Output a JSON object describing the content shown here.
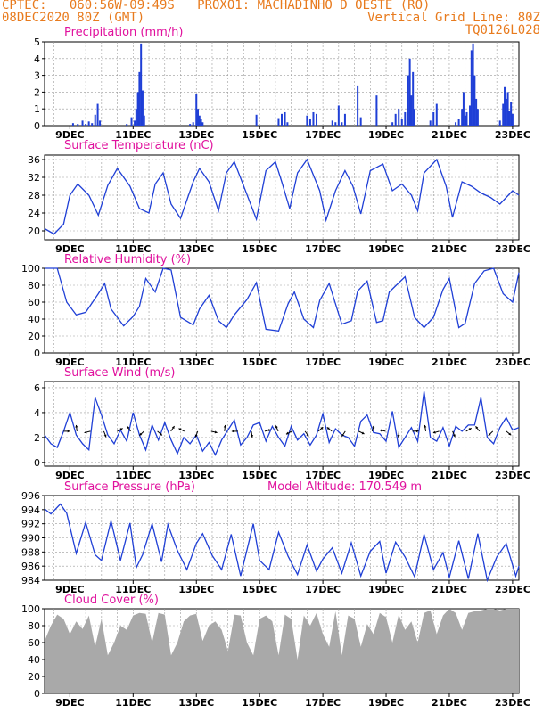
{
  "header": {
    "line1_left": "CPTEC:   060:56W-09:49S   PROXO1: MACHADINHO D OESTE (RO)",
    "line2_left": "08DEC2020 80Z (GMT)",
    "line2_right": "Vertical Grid Line: 80Z",
    "line3_right": "TQ0126L028"
  },
  "colors": {
    "header": "#e87b1e",
    "panel_title": "#e0119d",
    "series": "#1f3fd6",
    "cloud": "#a9a9a9",
    "grid": "#9a9a9a"
  },
  "x_axis": {
    "unit": "days after 08DEC2020 00Z",
    "range": [
      0.2,
      15.2
    ],
    "tick_labels": [
      "9DEC",
      "11DEC",
      "13DEC",
      "15DEC",
      "17DEC",
      "19DEC",
      "21DEC",
      "23DEC"
    ],
    "tick_positions": [
      1.0,
      3.0,
      5.0,
      7.0,
      9.0,
      11.0,
      13.0,
      15.0
    ]
  },
  "chart_data": [
    {
      "id": "precip",
      "type": "bar",
      "title": "Precipitation (mm/h)",
      "ylim": [
        0,
        5
      ],
      "yticks": [
        0,
        1,
        2,
        3,
        4,
        5
      ],
      "bars": [
        [
          1.1,
          0.15
        ],
        [
          1.25,
          0.1
        ],
        [
          1.4,
          0.3
        ],
        [
          1.5,
          0.1
        ],
        [
          1.6,
          0.25
        ],
        [
          1.7,
          0.15
        ],
        [
          1.8,
          0.65
        ],
        [
          1.88,
          1.3
        ],
        [
          1.95,
          0.3
        ],
        [
          2.8,
          0.1
        ],
        [
          2.95,
          0.5
        ],
        [
          3.05,
          0.3
        ],
        [
          3.1,
          1.0
        ],
        [
          3.15,
          2.0
        ],
        [
          3.2,
          3.2
        ],
        [
          3.25,
          4.9
        ],
        [
          3.3,
          2.1
        ],
        [
          3.35,
          0.6
        ],
        [
          4.8,
          0.1
        ],
        [
          4.9,
          0.2
        ],
        [
          5.0,
          1.9
        ],
        [
          5.05,
          1.0
        ],
        [
          5.1,
          0.6
        ],
        [
          5.15,
          0.4
        ],
        [
          5.2,
          0.2
        ],
        [
          6.9,
          0.65
        ],
        [
          7.6,
          0.45
        ],
        [
          7.7,
          0.7
        ],
        [
          7.8,
          0.8
        ],
        [
          7.88,
          0.2
        ],
        [
          8.5,
          0.6
        ],
        [
          8.6,
          0.4
        ],
        [
          8.7,
          0.8
        ],
        [
          8.8,
          0.7
        ],
        [
          9.3,
          0.3
        ],
        [
          9.4,
          0.2
        ],
        [
          9.5,
          1.2
        ],
        [
          9.6,
          0.2
        ],
        [
          9.7,
          0.7
        ],
        [
          10.1,
          2.4
        ],
        [
          10.2,
          0.5
        ],
        [
          10.7,
          1.8
        ],
        [
          11.2,
          0.2
        ],
        [
          11.3,
          0.7
        ],
        [
          11.4,
          1.0
        ],
        [
          11.5,
          0.4
        ],
        [
          11.6,
          0.8
        ],
        [
          11.7,
          3.0
        ],
        [
          11.75,
          4.0
        ],
        [
          11.8,
          1.8
        ],
        [
          11.85,
          3.2
        ],
        [
          11.9,
          1.0
        ],
        [
          12.4,
          0.3
        ],
        [
          12.5,
          0.8
        ],
        [
          12.6,
          1.3
        ],
        [
          13.2,
          0.2
        ],
        [
          13.3,
          0.4
        ],
        [
          13.4,
          1.0
        ],
        [
          13.45,
          2.0
        ],
        [
          13.5,
          0.6
        ],
        [
          13.55,
          0.8
        ],
        [
          13.65,
          1.2
        ],
        [
          13.7,
          4.5
        ],
        [
          13.75,
          4.9
        ],
        [
          13.8,
          3.0
        ],
        [
          13.85,
          1.6
        ],
        [
          13.9,
          1.0
        ],
        [
          14.6,
          0.3
        ],
        [
          14.7,
          1.3
        ],
        [
          14.75,
          2.3
        ],
        [
          14.8,
          1.6
        ],
        [
          14.85,
          2.0
        ],
        [
          14.9,
          0.9
        ],
        [
          14.95,
          1.4
        ],
        [
          15.0,
          0.7
        ]
      ]
    },
    {
      "id": "temp",
      "type": "line",
      "title": "Surface Temperature (nC)",
      "ylim": [
        18,
        37
      ],
      "yticks": [
        20,
        24,
        28,
        32,
        36
      ],
      "x": [
        0.2,
        0.5,
        0.8,
        1.0,
        1.25,
        1.6,
        1.9,
        2.2,
        2.5,
        2.9,
        3.2,
        3.5,
        3.7,
        3.95,
        4.2,
        4.5,
        4.9,
        5.1,
        5.4,
        5.7,
        5.95,
        6.2,
        6.5,
        6.9,
        7.2,
        7.5,
        7.7,
        7.95,
        8.2,
        8.5,
        8.9,
        9.1,
        9.4,
        9.7,
        9.95,
        10.2,
        10.5,
        10.9,
        11.2,
        11.5,
        11.8,
        12.0,
        12.2,
        12.6,
        12.9,
        13.1,
        13.4,
        13.7,
        14.0,
        14.3,
        14.6,
        15.0,
        15.2
      ],
      "y": [
        20.5,
        19.3,
        21.5,
        28,
        30.5,
        28,
        23.5,
        30.2,
        34,
        30,
        25,
        24,
        30.5,
        33,
        26,
        22.8,
        31,
        34,
        31,
        24.5,
        33,
        35.5,
        30,
        22.6,
        33.5,
        35.5,
        31,
        25,
        33,
        36,
        29,
        22.4,
        29,
        33.5,
        30,
        23.8,
        33.5,
        35,
        29,
        30.5,
        28,
        24.5,
        33,
        36,
        30,
        23,
        31,
        30,
        28.5,
        27.5,
        26,
        29,
        28
      ]
    },
    {
      "id": "rh",
      "type": "line",
      "title": "Relative Humidity (%)",
      "ylim": [
        0,
        100
      ],
      "yticks": [
        0,
        20,
        40,
        60,
        80,
        100
      ],
      "x": [
        0.2,
        0.6,
        0.9,
        1.2,
        1.5,
        1.9,
        2.1,
        2.3,
        2.7,
        3.0,
        3.2,
        3.4,
        3.7,
        3.95,
        4.2,
        4.5,
        4.9,
        5.1,
        5.4,
        5.7,
        5.95,
        6.2,
        6.6,
        6.9,
        7.2,
        7.6,
        7.9,
        8.1,
        8.4,
        8.7,
        8.9,
        9.2,
        9.6,
        9.9,
        10.1,
        10.4,
        10.7,
        10.9,
        11.1,
        11.6,
        11.9,
        12.2,
        12.5,
        12.8,
        13.0,
        13.3,
        13.5,
        13.8,
        14.1,
        14.4,
        14.7,
        15.0,
        15.2
      ],
      "y": [
        100,
        100,
        60,
        45,
        48,
        70,
        82,
        52,
        32,
        43,
        55,
        88,
        72,
        100,
        98,
        42,
        33,
        52,
        68,
        38,
        30,
        45,
        63,
        83,
        28,
        26,
        58,
        72,
        40,
        30,
        62,
        82,
        34,
        38,
        73,
        85,
        36,
        38,
        72,
        90,
        42,
        30,
        42,
        75,
        88,
        30,
        35,
        82,
        97,
        100,
        70,
        60,
        95
      ]
    },
    {
      "id": "wind",
      "type": "line",
      "title": "Surface Wind (m/s)",
      "ylim": [
        -0.3,
        6.5
      ],
      "yticks": [
        0,
        2,
        4,
        6
      ],
      "x": [
        0.2,
        0.4,
        0.6,
        0.8,
        1.0,
        1.2,
        1.4,
        1.6,
        1.8,
        2.0,
        2.2,
        2.4,
        2.6,
        2.8,
        3.0,
        3.2,
        3.4,
        3.6,
        3.8,
        4.0,
        4.2,
        4.4,
        4.6,
        4.8,
        5.0,
        5.2,
        5.4,
        5.6,
        5.8,
        6.0,
        6.2,
        6.4,
        6.6,
        6.8,
        7.0,
        7.2,
        7.4,
        7.6,
        7.8,
        8.0,
        8.2,
        8.4,
        8.6,
        8.8,
        9.0,
        9.2,
        9.4,
        9.6,
        9.8,
        10.0,
        10.2,
        10.4,
        10.6,
        10.8,
        11.0,
        11.2,
        11.4,
        11.6,
        11.8,
        12.0,
        12.2,
        12.4,
        12.6,
        12.8,
        13.0,
        13.2,
        13.4,
        13.6,
        13.8,
        14.0,
        14.2,
        14.4,
        14.6,
        14.8,
        15.0,
        15.2
      ],
      "y": [
        2.2,
        1.5,
        1.2,
        2.5,
        4.0,
        2.2,
        1.5,
        1.0,
        5.2,
        3.8,
        2.2,
        1.5,
        2.6,
        1.7,
        4.0,
        2.2,
        1.0,
        3.0,
        1.8,
        3.2,
        1.8,
        0.7,
        2.0,
        1.5,
        2.2,
        0.9,
        1.6,
        0.6,
        1.8,
        2.6,
        3.4,
        1.4,
        2.0,
        3.0,
        3.2,
        1.7,
        2.9,
        2.0,
        1.3,
        2.9,
        1.8,
        2.3,
        1.4,
        2.2,
        3.9,
        1.6,
        2.7,
        2.2,
        2.0,
        1.3,
        3.3,
        3.8,
        2.4,
        2.3,
        1.7,
        4.1,
        1.2,
        2.0,
        2.8,
        1.7,
        5.7,
        2.0,
        1.7,
        2.8,
        1.3,
        2.9,
        2.5,
        3.0,
        3.0,
        5.2,
        2.0,
        1.5,
        2.8,
        3.6,
        2.6,
        2.8
      ],
      "vector_count": 34
    },
    {
      "id": "pressure",
      "type": "line",
      "title": "Surface Pressure (hPa)",
      "ylim": [
        984,
        996
      ],
      "yticks": [
        984,
        986,
        988,
        990,
        992,
        994,
        996
      ],
      "x": [
        0.2,
        0.4,
        0.7,
        0.9,
        1.2,
        1.5,
        1.8,
        2.0,
        2.3,
        2.6,
        2.9,
        3.1,
        3.3,
        3.6,
        3.9,
        4.1,
        4.4,
        4.7,
        5.0,
        5.2,
        5.5,
        5.8,
        6.1,
        6.4,
        6.8,
        7.0,
        7.3,
        7.6,
        7.9,
        8.2,
        8.5,
        8.8,
        9.0,
        9.3,
        9.6,
        9.9,
        10.2,
        10.5,
        10.8,
        11.0,
        11.3,
        11.6,
        11.9,
        12.2,
        12.5,
        12.8,
        13.0,
        13.3,
        13.6,
        13.9,
        14.2,
        14.5,
        14.8,
        15.1,
        15.2
      ],
      "y": [
        994.1,
        993.4,
        994.8,
        993.5,
        987.8,
        992.2,
        987.6,
        986.8,
        992.4,
        986.8,
        992.1,
        985.8,
        987.6,
        992.0,
        986.6,
        991.9,
        988.2,
        985.5,
        989.2,
        990.6,
        987.5,
        985.5,
        990.5,
        984.6,
        992.0,
        986.8,
        985.5,
        990.8,
        987.4,
        984.8,
        989.0,
        985.3,
        987.0,
        988.6,
        985.0,
        989.3,
        984.6,
        988.1,
        989.5,
        985.0,
        989.4,
        987.3,
        984.5,
        990.5,
        985.5,
        987.9,
        984.4,
        989.6,
        984.2,
        990.6,
        984.0,
        987.3,
        989.2,
        984.6,
        986.0
      ]
    },
    {
      "id": "cloud",
      "type": "area",
      "title": "Cloud Cover (%)",
      "ylim": [
        0,
        100
      ],
      "yticks": [
        0,
        20,
        40,
        60,
        80,
        100
      ],
      "x": [
        0.2,
        0.4,
        0.6,
        0.8,
        1.0,
        1.2,
        1.4,
        1.6,
        1.8,
        2.0,
        2.2,
        2.4,
        2.6,
        2.8,
        3.0,
        3.2,
        3.4,
        3.6,
        3.8,
        4.0,
        4.2,
        4.4,
        4.6,
        4.8,
        5.0,
        5.2,
        5.4,
        5.6,
        5.8,
        6.0,
        6.2,
        6.4,
        6.6,
        6.8,
        7.0,
        7.2,
        7.4,
        7.6,
        7.8,
        8.0,
        8.2,
        8.4,
        8.6,
        8.8,
        9.0,
        9.2,
        9.4,
        9.6,
        9.8,
        10.0,
        10.2,
        10.4,
        10.6,
        10.8,
        11.0,
        11.2,
        11.4,
        11.6,
        11.8,
        12.0,
        12.2,
        12.4,
        12.6,
        12.8,
        13.0,
        13.2,
        13.4,
        13.6,
        13.8,
        14.0,
        14.2,
        14.4,
        14.6,
        14.8,
        15.0,
        15.2
      ],
      "y": [
        62,
        80,
        93,
        88,
        70,
        85,
        76,
        92,
        55,
        88,
        45,
        60,
        80,
        75,
        92,
        95,
        94,
        60,
        95,
        93,
        45,
        60,
        85,
        92,
        94,
        62,
        80,
        85,
        75,
        50,
        93,
        92,
        60,
        45,
        88,
        92,
        85,
        45,
        93,
        88,
        40,
        92,
        80,
        95,
        70,
        55,
        97,
        45,
        92,
        88,
        55,
        82,
        70,
        95,
        90,
        60,
        93,
        75,
        85,
        60,
        95,
        98,
        70,
        92,
        100,
        95,
        75,
        95,
        97,
        98,
        100,
        100,
        98,
        100,
        100,
        100
      ]
    }
  ],
  "panels_extra": {
    "model_altitude_text": "Model Altitude: 170.549 m"
  }
}
